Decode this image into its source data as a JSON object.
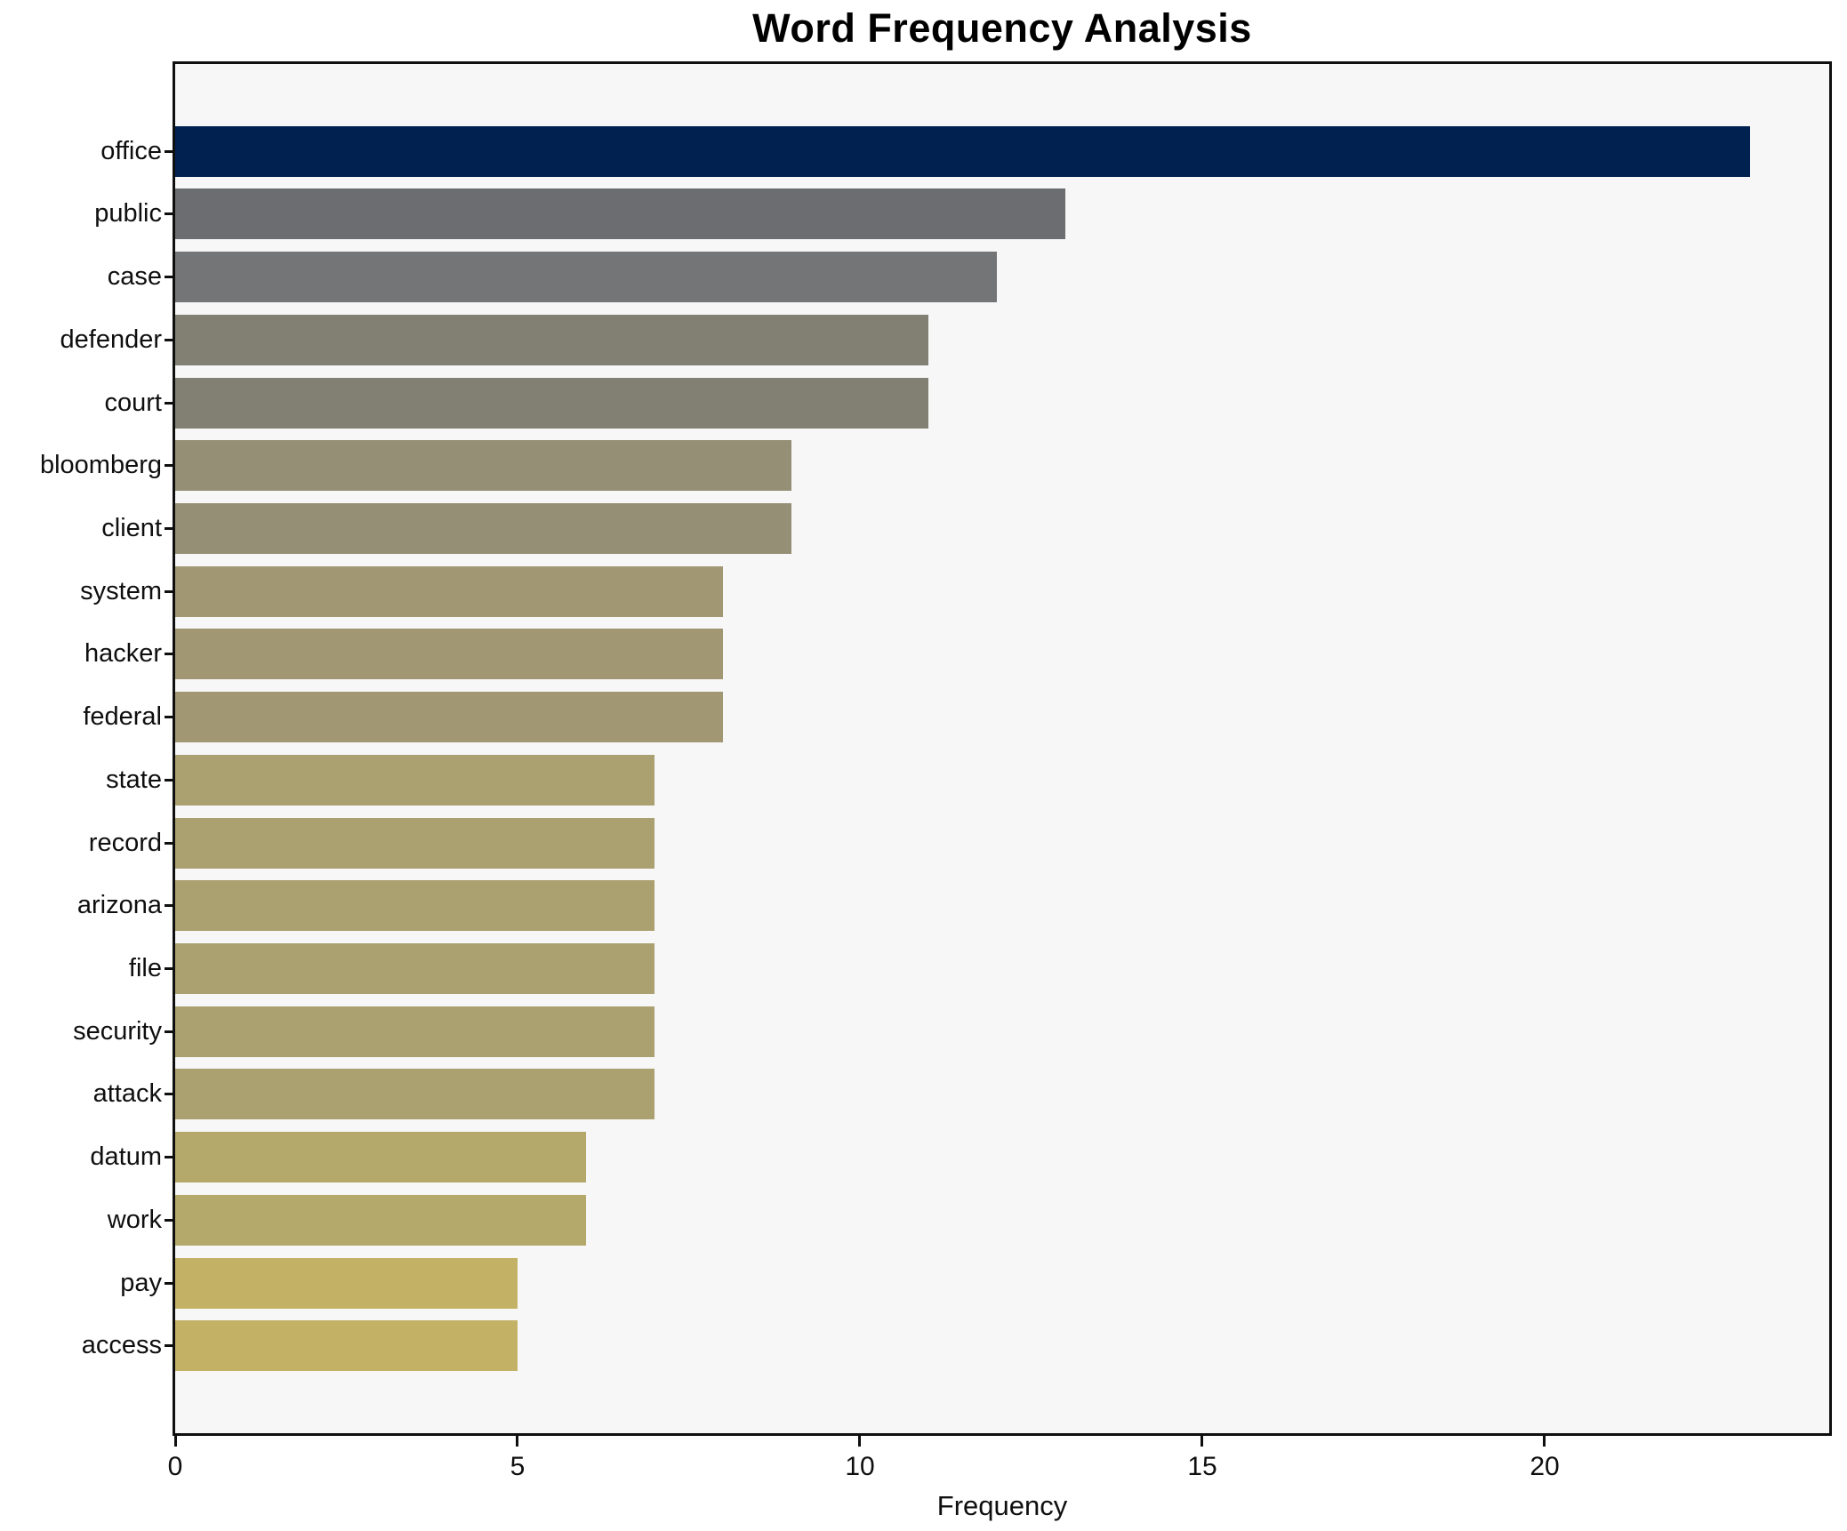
{
  "title": "Word Frequency Analysis",
  "chart_data": {
    "type": "bar",
    "orientation": "horizontal",
    "title": "Word Frequency Analysis",
    "xlabel": "Frequency",
    "ylabel": "",
    "categories": [
      "office",
      "public",
      "case",
      "defender",
      "court",
      "bloomberg",
      "client",
      "system",
      "hacker",
      "federal",
      "state",
      "record",
      "arizona",
      "file",
      "security",
      "attack",
      "datum",
      "work",
      "pay",
      "access"
    ],
    "values": [
      23,
      13,
      12,
      11,
      11,
      9,
      9,
      8,
      8,
      8,
      7,
      7,
      7,
      7,
      7,
      7,
      6,
      6,
      5,
      5
    ],
    "bar_colors": [
      "#012150",
      "#6C6D70",
      "#747577",
      "#827F73",
      "#827F73",
      "#958F75",
      "#958F75",
      "#A19873",
      "#A19873",
      "#A19873",
      "#ABA06F",
      "#ABA06F",
      "#ABA06F",
      "#ABA06F",
      "#ABA06F",
      "#ABA06F",
      "#B4A96A",
      "#B4A96A",
      "#C3B266",
      "#C3B266"
    ],
    "xticks": [
      0,
      5,
      10,
      15,
      20
    ],
    "xlim": [
      0,
      24.16
    ],
    "bar_height_fraction": 0.8,
    "grid": false,
    "legend": null,
    "plot_background": "#f7f7f7",
    "figure_background": "#ffffff",
    "spine_color": "#0f0f0f",
    "colormap": "cividis"
  }
}
